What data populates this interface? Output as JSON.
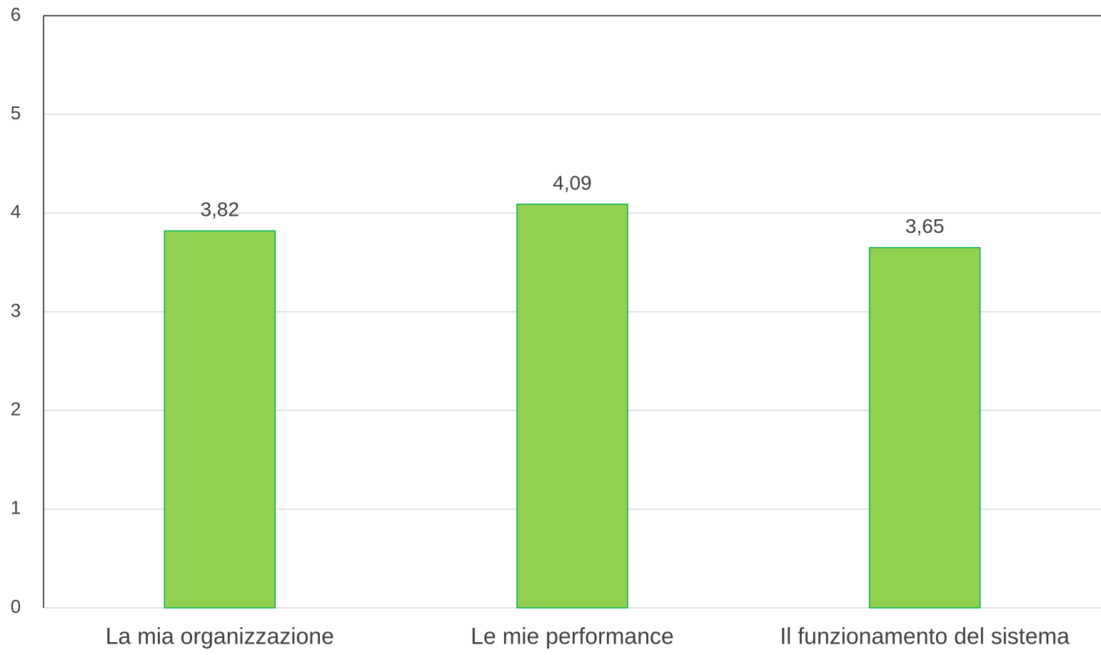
{
  "chart_data": {
    "type": "bar",
    "categories": [
      "La mia organizzazione",
      "Le mie performance",
      "Il funzionamento del sistema"
    ],
    "values": [
      3.82,
      4.09,
      3.65
    ],
    "value_labels": [
      "3,82",
      "4,09",
      "3,65"
    ],
    "color": "#92d050",
    "ylim": [
      0,
      6
    ],
    "yticks": [
      0,
      1,
      2,
      3,
      4,
      5,
      6
    ],
    "grid": true
  }
}
